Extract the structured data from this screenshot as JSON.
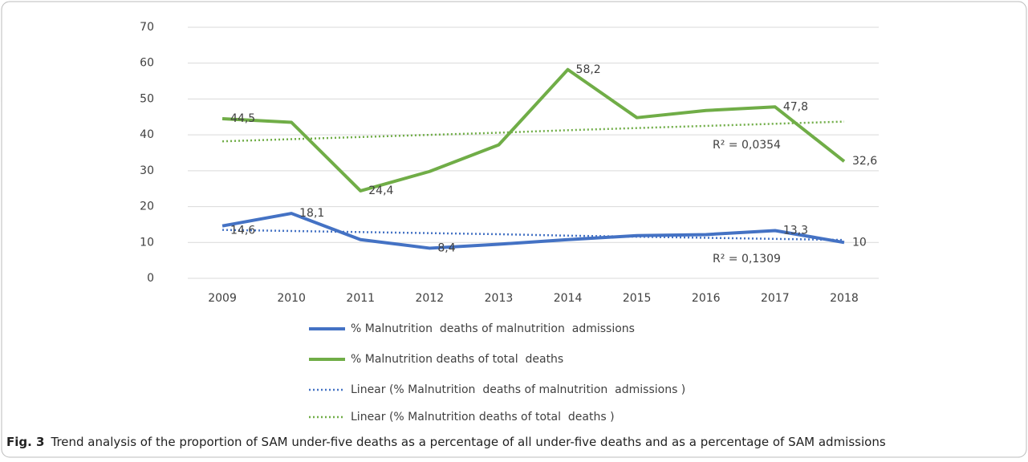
{
  "chart_data": {
    "type": "line",
    "categories": [
      "2009",
      "2010",
      "2011",
      "2012",
      "2013",
      "2014",
      "2015",
      "2016",
      "2017",
      "2018"
    ],
    "ylim": [
      0,
      70
    ],
    "yticks": [
      0,
      10,
      20,
      30,
      40,
      50,
      60,
      70
    ],
    "grid": true,
    "series": [
      {
        "name": "% Malnutrition  deaths of malnutrition  admissions",
        "color": "#4472c4",
        "style": "solid",
        "values": [
          14.6,
          18.1,
          10.8,
          8.4,
          9.5,
          10.8,
          11.9,
          12.2,
          13.3,
          10
        ],
        "value_labels": [
          "14,6",
          "18,1",
          null,
          "8,4",
          null,
          null,
          null,
          null,
          "13,3",
          "10"
        ]
      },
      {
        "name": "% Malnutrition deaths of total  deaths",
        "color": "#70ad47",
        "style": "solid",
        "values": [
          44.5,
          43.5,
          24.4,
          29.8,
          37.2,
          58.2,
          44.8,
          46.8,
          47.8,
          32.6
        ],
        "value_labels": [
          "44,5",
          null,
          "24,4",
          null,
          null,
          "58,2",
          null,
          null,
          "47,8",
          "32,6"
        ]
      },
      {
        "name": "Linear (% Malnutrition  deaths of malnutrition  admissions )",
        "color": "#4472c4",
        "style": "dotted",
        "values": [
          13.5,
          13.2,
          12.9,
          12.6,
          12.3,
          11.9,
          11.6,
          11.3,
          11.0,
          10.7
        ]
      },
      {
        "name": "Linear (% Malnutrition deaths of total  deaths )",
        "color": "#70ad47",
        "style": "dotted",
        "values": [
          38.2,
          38.8,
          39.4,
          40.0,
          40.6,
          41.3,
          41.9,
          42.5,
          43.1,
          43.7
        ]
      }
    ],
    "annotations": [
      "R² = 0,0354",
      "R² = 0,1309"
    ],
    "caption_label": "Fig. 3",
    "caption": "Trend analysis of the proportion of SAM under-five deaths as a percentage of all under-five deaths and as a percentage of SAM admissions"
  }
}
